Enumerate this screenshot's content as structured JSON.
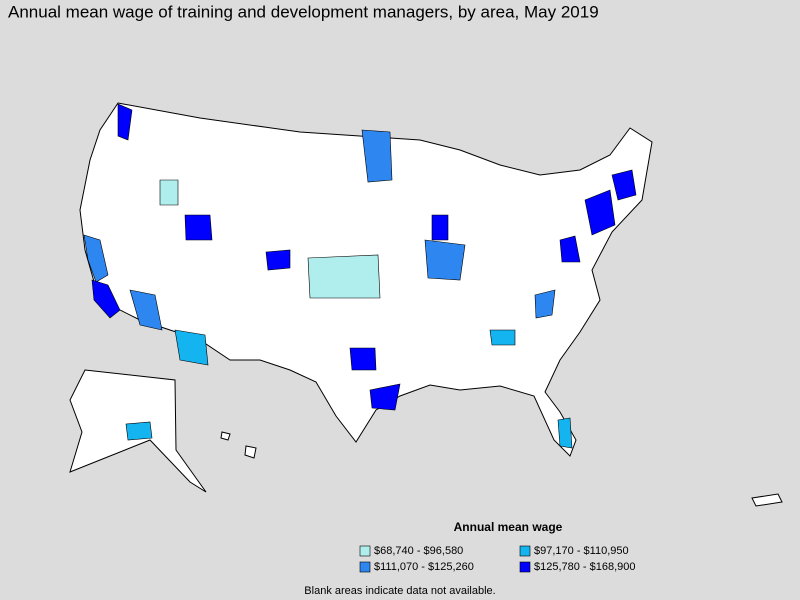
{
  "title": "Annual mean wage of training and development managers, by area, May 2019",
  "legend": {
    "title": "Annual mean wage",
    "items": [
      {
        "label": "$68,740 - $96,580",
        "color": "#b0eeee"
      },
      {
        "label": "$97,170 - $110,950",
        "color": "#14b4f0"
      },
      {
        "label": "$111,070 - $125,260",
        "color": "#2e86f0"
      },
      {
        "label": "$125,780 - $168,900",
        "color": "#0000ff"
      }
    ]
  },
  "note": "Blank areas indicate data not available."
}
